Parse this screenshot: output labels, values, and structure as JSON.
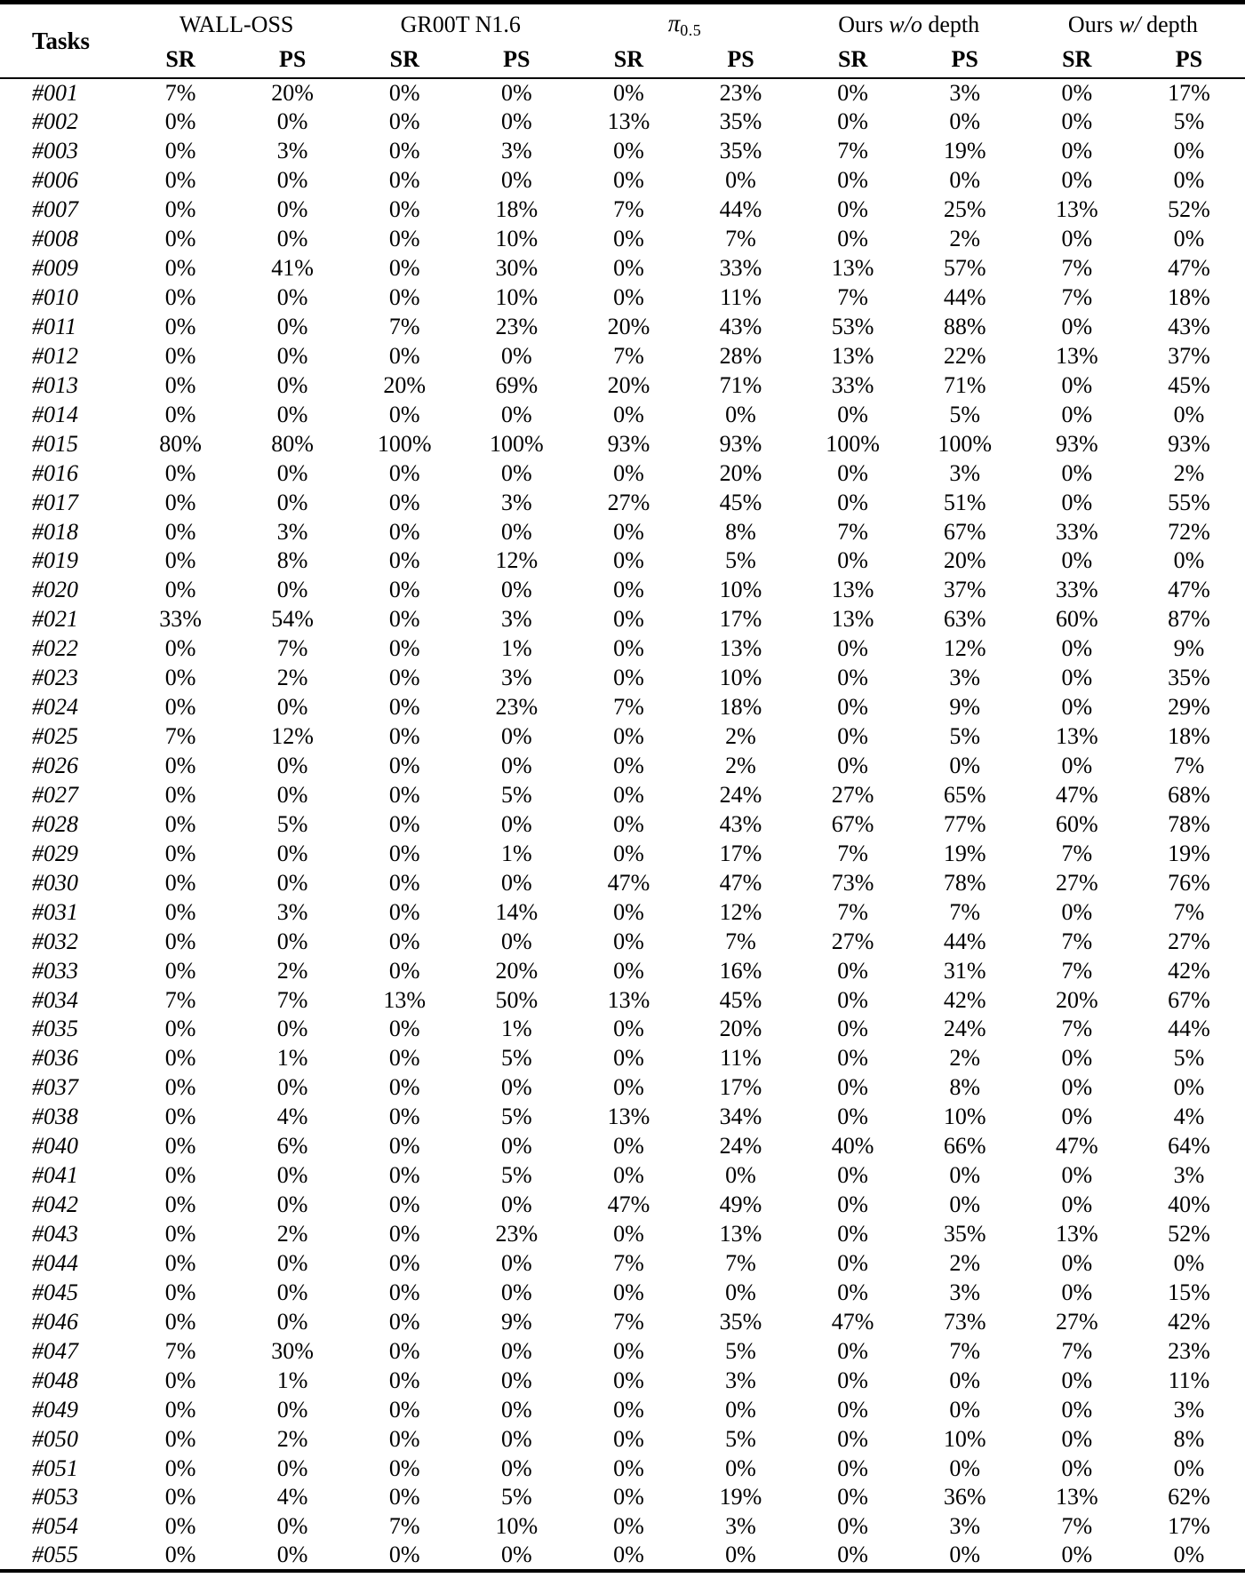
{
  "table": {
    "corner_header": "Tasks",
    "groups": [
      {
        "plain": "WALL-OSS"
      },
      {
        "plain": "GR00T N1.6"
      },
      {
        "pi": "π",
        "sub": "0.5"
      },
      {
        "prefix": "Ours",
        "italic": "w/o",
        "suffix": "depth"
      },
      {
        "prefix": "Ours",
        "italic": "w/",
        "suffix": "depth"
      }
    ],
    "subheaders": [
      "SR",
      "PS"
    ],
    "rows": [
      {
        "task": "#001",
        "values": [
          "7%",
          "20%",
          "0%",
          "0%",
          "0%",
          "23%",
          "0%",
          "3%",
          "0%",
          "17%"
        ]
      },
      {
        "task": "#002",
        "values": [
          "0%",
          "0%",
          "0%",
          "0%",
          "13%",
          "35%",
          "0%",
          "0%",
          "0%",
          "5%"
        ]
      },
      {
        "task": "#003",
        "values": [
          "0%",
          "3%",
          "0%",
          "3%",
          "0%",
          "35%",
          "7%",
          "19%",
          "0%",
          "0%"
        ]
      },
      {
        "task": "#006",
        "values": [
          "0%",
          "0%",
          "0%",
          "0%",
          "0%",
          "0%",
          "0%",
          "0%",
          "0%",
          "0%"
        ]
      },
      {
        "task": "#007",
        "values": [
          "0%",
          "0%",
          "0%",
          "18%",
          "7%",
          "44%",
          "0%",
          "25%",
          "13%",
          "52%"
        ]
      },
      {
        "task": "#008",
        "values": [
          "0%",
          "0%",
          "0%",
          "10%",
          "0%",
          "7%",
          "0%",
          "2%",
          "0%",
          "0%"
        ]
      },
      {
        "task": "#009",
        "values": [
          "0%",
          "41%",
          "0%",
          "30%",
          "0%",
          "33%",
          "13%",
          "57%",
          "7%",
          "47%"
        ]
      },
      {
        "task": "#010",
        "values": [
          "0%",
          "0%",
          "0%",
          "10%",
          "0%",
          "11%",
          "7%",
          "44%",
          "7%",
          "18%"
        ]
      },
      {
        "task": "#011",
        "values": [
          "0%",
          "0%",
          "7%",
          "23%",
          "20%",
          "43%",
          "53%",
          "88%",
          "0%",
          "43%"
        ]
      },
      {
        "task": "#012",
        "values": [
          "0%",
          "0%",
          "0%",
          "0%",
          "7%",
          "28%",
          "13%",
          "22%",
          "13%",
          "37%"
        ]
      },
      {
        "task": "#013",
        "values": [
          "0%",
          "0%",
          "20%",
          "69%",
          "20%",
          "71%",
          "33%",
          "71%",
          "0%",
          "45%"
        ]
      },
      {
        "task": "#014",
        "values": [
          "0%",
          "0%",
          "0%",
          "0%",
          "0%",
          "0%",
          "0%",
          "5%",
          "0%",
          "0%"
        ]
      },
      {
        "task": "#015",
        "values": [
          "80%",
          "80%",
          "100%",
          "100%",
          "93%",
          "93%",
          "100%",
          "100%",
          "93%",
          "93%"
        ]
      },
      {
        "task": "#016",
        "values": [
          "0%",
          "0%",
          "0%",
          "0%",
          "0%",
          "20%",
          "0%",
          "3%",
          "0%",
          "2%"
        ]
      },
      {
        "task": "#017",
        "values": [
          "0%",
          "0%",
          "0%",
          "3%",
          "27%",
          "45%",
          "0%",
          "51%",
          "0%",
          "55%"
        ]
      },
      {
        "task": "#018",
        "values": [
          "0%",
          "3%",
          "0%",
          "0%",
          "0%",
          "8%",
          "7%",
          "67%",
          "33%",
          "72%"
        ]
      },
      {
        "task": "#019",
        "values": [
          "0%",
          "8%",
          "0%",
          "12%",
          "0%",
          "5%",
          "0%",
          "20%",
          "0%",
          "0%"
        ]
      },
      {
        "task": "#020",
        "values": [
          "0%",
          "0%",
          "0%",
          "0%",
          "0%",
          "10%",
          "13%",
          "37%",
          "33%",
          "47%"
        ]
      },
      {
        "task": "#021",
        "values": [
          "33%",
          "54%",
          "0%",
          "3%",
          "0%",
          "17%",
          "13%",
          "63%",
          "60%",
          "87%"
        ]
      },
      {
        "task": "#022",
        "values": [
          "0%",
          "7%",
          "0%",
          "1%",
          "0%",
          "13%",
          "0%",
          "12%",
          "0%",
          "9%"
        ]
      },
      {
        "task": "#023",
        "values": [
          "0%",
          "2%",
          "0%",
          "3%",
          "0%",
          "10%",
          "0%",
          "3%",
          "0%",
          "35%"
        ]
      },
      {
        "task": "#024",
        "values": [
          "0%",
          "0%",
          "0%",
          "23%",
          "7%",
          "18%",
          "0%",
          "9%",
          "0%",
          "29%"
        ]
      },
      {
        "task": "#025",
        "values": [
          "7%",
          "12%",
          "0%",
          "0%",
          "0%",
          "2%",
          "0%",
          "5%",
          "13%",
          "18%"
        ]
      },
      {
        "task": "#026",
        "values": [
          "0%",
          "0%",
          "0%",
          "0%",
          "0%",
          "2%",
          "0%",
          "0%",
          "0%",
          "7%"
        ]
      },
      {
        "task": "#027",
        "values": [
          "0%",
          "0%",
          "0%",
          "5%",
          "0%",
          "24%",
          "27%",
          "65%",
          "47%",
          "68%"
        ]
      },
      {
        "task": "#028",
        "values": [
          "0%",
          "5%",
          "0%",
          "0%",
          "0%",
          "43%",
          "67%",
          "77%",
          "60%",
          "78%"
        ]
      },
      {
        "task": "#029",
        "values": [
          "0%",
          "0%",
          "0%",
          "1%",
          "0%",
          "17%",
          "7%",
          "19%",
          "7%",
          "19%"
        ]
      },
      {
        "task": "#030",
        "values": [
          "0%",
          "0%",
          "0%",
          "0%",
          "47%",
          "47%",
          "73%",
          "78%",
          "27%",
          "76%"
        ]
      },
      {
        "task": "#031",
        "values": [
          "0%",
          "3%",
          "0%",
          "14%",
          "0%",
          "12%",
          "7%",
          "7%",
          "0%",
          "7%"
        ]
      },
      {
        "task": "#032",
        "values": [
          "0%",
          "0%",
          "0%",
          "0%",
          "0%",
          "7%",
          "27%",
          "44%",
          "7%",
          "27%"
        ]
      },
      {
        "task": "#033",
        "values": [
          "0%",
          "2%",
          "0%",
          "20%",
          "0%",
          "16%",
          "0%",
          "31%",
          "7%",
          "42%"
        ]
      },
      {
        "task": "#034",
        "values": [
          "7%",
          "7%",
          "13%",
          "50%",
          "13%",
          "45%",
          "0%",
          "42%",
          "20%",
          "67%"
        ]
      },
      {
        "task": "#035",
        "values": [
          "0%",
          "0%",
          "0%",
          "1%",
          "0%",
          "20%",
          "0%",
          "24%",
          "7%",
          "44%"
        ]
      },
      {
        "task": "#036",
        "values": [
          "0%",
          "1%",
          "0%",
          "5%",
          "0%",
          "11%",
          "0%",
          "2%",
          "0%",
          "5%"
        ]
      },
      {
        "task": "#037",
        "values": [
          "0%",
          "0%",
          "0%",
          "0%",
          "0%",
          "17%",
          "0%",
          "8%",
          "0%",
          "0%"
        ]
      },
      {
        "task": "#038",
        "values": [
          "0%",
          "4%",
          "0%",
          "5%",
          "13%",
          "34%",
          "0%",
          "10%",
          "0%",
          "4%"
        ]
      },
      {
        "task": "#040",
        "values": [
          "0%",
          "6%",
          "0%",
          "0%",
          "0%",
          "24%",
          "40%",
          "66%",
          "47%",
          "64%"
        ]
      },
      {
        "task": "#041",
        "values": [
          "0%",
          "0%",
          "0%",
          "5%",
          "0%",
          "0%",
          "0%",
          "0%",
          "0%",
          "3%"
        ]
      },
      {
        "task": "#042",
        "values": [
          "0%",
          "0%",
          "0%",
          "0%",
          "47%",
          "49%",
          "0%",
          "0%",
          "0%",
          "40%"
        ]
      },
      {
        "task": "#043",
        "values": [
          "0%",
          "2%",
          "0%",
          "23%",
          "0%",
          "13%",
          "0%",
          "35%",
          "13%",
          "52%"
        ]
      },
      {
        "task": "#044",
        "values": [
          "0%",
          "0%",
          "0%",
          "0%",
          "7%",
          "7%",
          "0%",
          "2%",
          "0%",
          "0%"
        ]
      },
      {
        "task": "#045",
        "values": [
          "0%",
          "0%",
          "0%",
          "0%",
          "0%",
          "0%",
          "0%",
          "3%",
          "0%",
          "15%"
        ]
      },
      {
        "task": "#046",
        "values": [
          "0%",
          "0%",
          "0%",
          "9%",
          "7%",
          "35%",
          "47%",
          "73%",
          "27%",
          "42%"
        ]
      },
      {
        "task": "#047",
        "values": [
          "7%",
          "30%",
          "0%",
          "0%",
          "0%",
          "5%",
          "0%",
          "7%",
          "7%",
          "23%"
        ]
      },
      {
        "task": "#048",
        "values": [
          "0%",
          "1%",
          "0%",
          "0%",
          "0%",
          "3%",
          "0%",
          "0%",
          "0%",
          "11%"
        ]
      },
      {
        "task": "#049",
        "values": [
          "0%",
          "0%",
          "0%",
          "0%",
          "0%",
          "0%",
          "0%",
          "0%",
          "0%",
          "3%"
        ]
      },
      {
        "task": "#050",
        "values": [
          "0%",
          "2%",
          "0%",
          "0%",
          "0%",
          "5%",
          "0%",
          "10%",
          "0%",
          "8%"
        ]
      },
      {
        "task": "#051",
        "values": [
          "0%",
          "0%",
          "0%",
          "0%",
          "0%",
          "0%",
          "0%",
          "0%",
          "0%",
          "0%"
        ]
      },
      {
        "task": "#053",
        "values": [
          "0%",
          "4%",
          "0%",
          "5%",
          "0%",
          "19%",
          "0%",
          "36%",
          "13%",
          "62%"
        ]
      },
      {
        "task": "#054",
        "values": [
          "0%",
          "0%",
          "7%",
          "10%",
          "0%",
          "3%",
          "0%",
          "3%",
          "7%",
          "17%"
        ]
      },
      {
        "task": "#055",
        "values": [
          "0%",
          "0%",
          "0%",
          "0%",
          "0%",
          "0%",
          "0%",
          "0%",
          "0%",
          "0%"
        ]
      }
    ]
  }
}
